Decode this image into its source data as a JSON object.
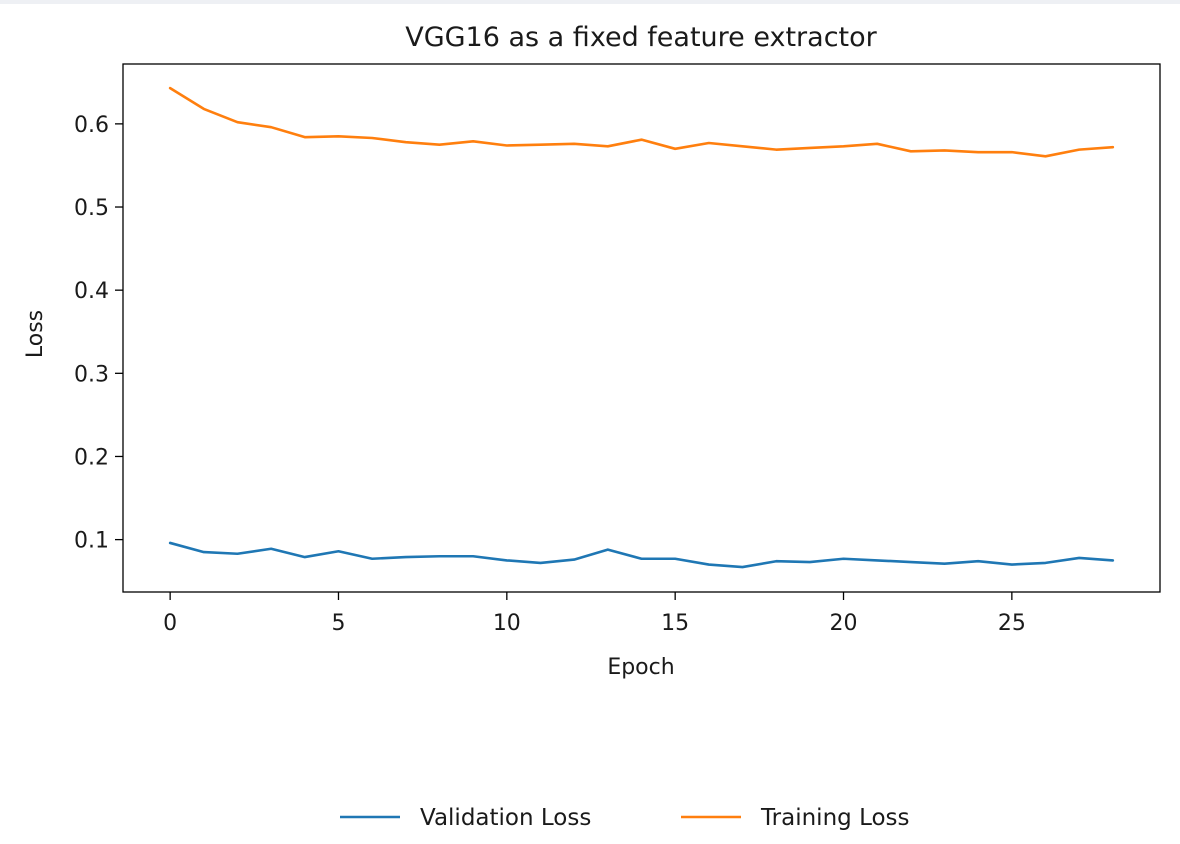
{
  "chart_data": {
    "type": "line",
    "title": "VGG16 as a fixed feature extractor",
    "xlabel": "Epoch",
    "ylabel": "Loss",
    "xlim": [
      -1.4,
      29.4
    ],
    "ylim": [
      0.037,
      0.672
    ],
    "xticks": [
      0,
      5,
      10,
      15,
      20,
      25
    ],
    "yticks": [
      0.1,
      0.2,
      0.3,
      0.4,
      0.5,
      0.6
    ],
    "grid": false,
    "legend_position": "bottom-center",
    "x": [
      0,
      1,
      2,
      3,
      4,
      5,
      6,
      7,
      8,
      9,
      10,
      11,
      12,
      13,
      14,
      15,
      16,
      17,
      18,
      19,
      20,
      21,
      22,
      23,
      24,
      25,
      26,
      27,
      28
    ],
    "series": [
      {
        "name": "Validation Loss",
        "color": "#1f77b4",
        "values": [
          0.096,
          0.085,
          0.083,
          0.089,
          0.079,
          0.086,
          0.077,
          0.079,
          0.08,
          0.08,
          0.075,
          0.072,
          0.076,
          0.088,
          0.077,
          0.077,
          0.07,
          0.067,
          0.074,
          0.073,
          0.077,
          0.075,
          0.073,
          0.071,
          0.074,
          0.07,
          0.072,
          0.078,
          0.075
        ]
      },
      {
        "name": "Training Loss",
        "color": "#ff7f0e",
        "values": [
          0.643,
          0.618,
          0.602,
          0.596,
          0.584,
          0.585,
          0.583,
          0.578,
          0.575,
          0.579,
          0.574,
          0.575,
          0.576,
          0.573,
          0.581,
          0.57,
          0.577,
          0.573,
          0.569,
          0.571,
          0.573,
          0.576,
          0.567,
          0.568,
          0.566,
          0.566,
          0.561,
          0.569,
          0.572
        ]
      }
    ]
  }
}
